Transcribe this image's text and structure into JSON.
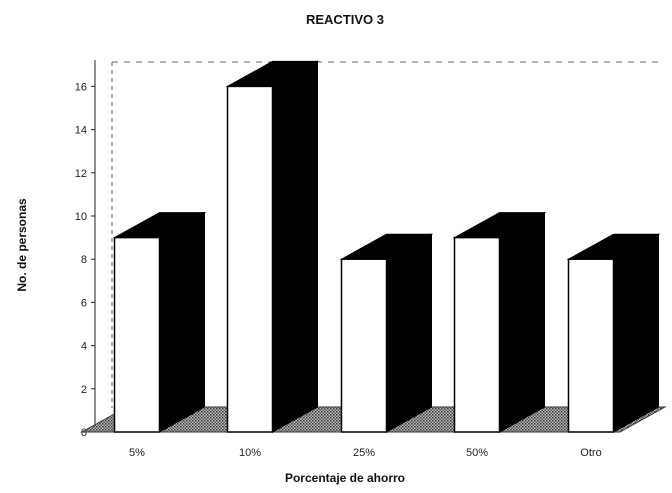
{
  "chart_data": {
    "type": "bar",
    "title": "REACTIVO 3",
    "xlabel": "Porcentaje de ahorro",
    "ylabel": "No. de personas",
    "categories": [
      "5%",
      "10%",
      "25%",
      "50%",
      "Otro"
    ],
    "values": [
      9,
      16,
      8,
      9,
      8
    ],
    "yticks": [
      "0",
      "2",
      "4",
      "6",
      "8",
      "10",
      "12",
      "14",
      "16"
    ],
    "ylim": [
      0,
      17
    ],
    "grid": false,
    "style": "3d",
    "colors": {
      "bar_face": "#ffffff",
      "bar_side": "#000000",
      "floor": "#888888"
    }
  }
}
